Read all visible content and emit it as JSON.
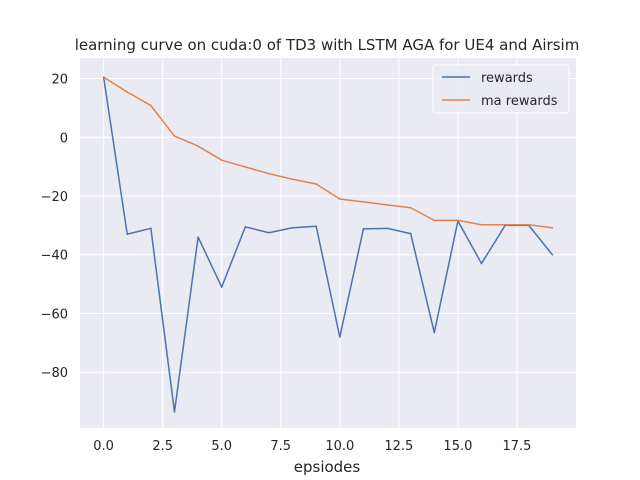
{
  "chart_data": {
    "type": "line",
    "title": "learning curve on cuda:0 of TD3 with LSTM AGA for UE4 and Airsim",
    "xlabel": "epsiodes",
    "ylabel": "",
    "xlim": [
      -1,
      20
    ],
    "ylim": [
      -99,
      27
    ],
    "xticks": [
      0,
      2.5,
      5,
      7.5,
      10,
      12.5,
      15,
      17.5
    ],
    "xtick_labels": [
      "0.0",
      "2.5",
      "5.0",
      "7.5",
      "10.0",
      "12.5",
      "15.0",
      "17.5"
    ],
    "yticks": [
      20,
      0,
      -20,
      -40,
      -60,
      -80
    ],
    "ytick_labels": [
      "20",
      "0",
      "−20",
      "−40",
      "−60",
      "−80"
    ],
    "grid": true,
    "legend_position": "top-right",
    "x": [
      0,
      1,
      2,
      3,
      4,
      5,
      6,
      7,
      8,
      9,
      10,
      11,
      12,
      13,
      14,
      15,
      16,
      17,
      18,
      19
    ],
    "series": [
      {
        "name": "rewards",
        "color": "#4c72b0",
        "values": [
          20.5,
          -33,
          -31,
          -93.5,
          -34,
          -51,
          -30.5,
          -32.5,
          -30.8,
          -30.3,
          -68,
          -31.2,
          -31,
          -32.8,
          -66.5,
          -28.5,
          -43,
          -30,
          -30,
          -40
        ]
      },
      {
        "name": "ma rewards",
        "color": "#dd8452",
        "values": [
          20.5,
          15.4,
          10.8,
          0.4,
          -3.0,
          -7.8,
          -10.1,
          -12.4,
          -14.3,
          -15.9,
          -21.0,
          -22.0,
          -23.0,
          -24.0,
          -28.3,
          -28.3,
          -29.8,
          -29.8,
          -29.8,
          -30.8
        ]
      }
    ]
  }
}
